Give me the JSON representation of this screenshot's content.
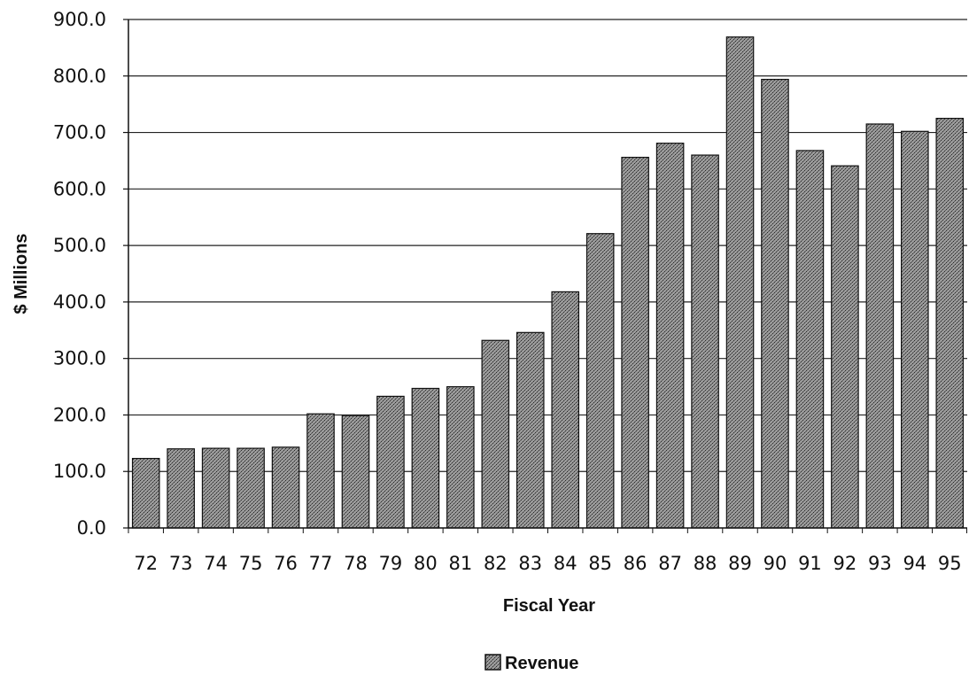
{
  "chart_data": {
    "type": "bar",
    "categories": [
      "72",
      "73",
      "74",
      "75",
      "76",
      "77",
      "78",
      "79",
      "80",
      "81",
      "82",
      "83",
      "84",
      "85",
      "86",
      "87",
      "88",
      "89",
      "90",
      "91",
      "92",
      "93",
      "94",
      "95"
    ],
    "series": [
      {
        "name": "Revenue",
        "values": [
          123,
          140,
          141,
          141,
          143,
          202,
          199,
          233,
          247,
          250,
          332,
          346,
          418,
          521,
          656,
          681,
          660,
          869,
          794,
          668,
          641,
          715,
          702,
          725
        ]
      }
    ],
    "xlabel": "Fiscal Year",
    "ylabel": "$ Millions",
    "ylim": [
      0,
      900
    ],
    "yticks": [
      "0.0",
      "100.0",
      "200.0",
      "300.0",
      "400.0",
      "500.0",
      "600.0",
      "700.0",
      "800.0",
      "900.0"
    ],
    "grid": true,
    "legend_position": "bottom-center",
    "colors": {
      "bar_fill": "#8a8a8a",
      "bar_stroke": "#111111",
      "grid": "#222222"
    }
  }
}
